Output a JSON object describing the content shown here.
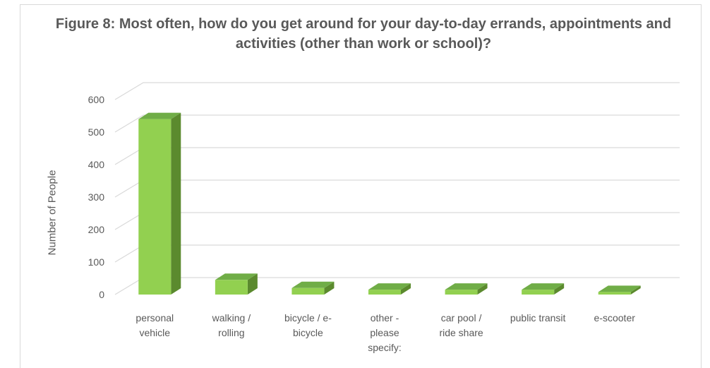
{
  "chart_data": {
    "type": "bar",
    "title": "Figure 8: Most often, how do you get around for your day-to-day errands, appointments and activities (other than work or school)?",
    "ylabel": "Number of People",
    "xlabel": "",
    "ylim": [
      0,
      600
    ],
    "yticks": [
      0,
      100,
      200,
      300,
      400,
      500,
      600
    ],
    "grid": true,
    "style": "3d-bar",
    "bar_color": "#92d050",
    "categories": [
      [
        "personal",
        "vehicle"
      ],
      [
        "walking /",
        "rolling"
      ],
      [
        "bicycle / e-",
        "bicycle"
      ],
      [
        "other -",
        "please",
        "specify:"
      ],
      [
        "car pool /",
        "ride share"
      ],
      [
        "public transit"
      ],
      [
        "e-scooter"
      ]
    ],
    "values": [
      540,
      45,
      20,
      15,
      15,
      15,
      8
    ]
  }
}
